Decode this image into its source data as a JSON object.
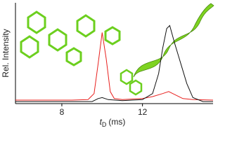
{
  "chart_data": {
    "type": "line",
    "y_label": "Rel. Intensity",
    "x_label": {
      "symbol": "t",
      "subscript": "D",
      "unit": "(ms)"
    },
    "xlim": [
      5.7,
      15.5
    ],
    "xticks": [
      8,
      12
    ],
    "ylim": [
      0,
      1
    ],
    "series": [
      {
        "color": "#e8201e",
        "x": [
          5.7,
          7,
          8.5,
          9.3,
          9.6,
          9.8,
          10.0,
          10.2,
          10.4,
          10.6,
          11,
          12,
          12.5,
          13,
          13.3,
          13.6,
          14,
          14.5,
          15.5
        ],
        "values": [
          0.035,
          0.035,
          0.035,
          0.04,
          0.1,
          0.4,
          0.71,
          0.45,
          0.12,
          0.05,
          0.04,
          0.05,
          0.07,
          0.1,
          0.12,
          0.09,
          0.05,
          0.04,
          0.035
        ]
      },
      {
        "color": "#111111",
        "x": [
          5.7,
          7,
          9.5,
          9.8,
          10.0,
          10.3,
          11,
          12,
          12.5,
          12.8,
          13.0,
          13.2,
          13.35,
          13.6,
          13.9,
          14.2,
          14.5,
          15,
          15.5
        ],
        "values": [
          0.02,
          0.02,
          0.02,
          0.05,
          0.06,
          0.04,
          0.03,
          0.04,
          0.1,
          0.3,
          0.55,
          0.75,
          0.78,
          0.6,
          0.4,
          0.2,
          0.06,
          0.02,
          0.02
        ]
      }
    ]
  }
}
